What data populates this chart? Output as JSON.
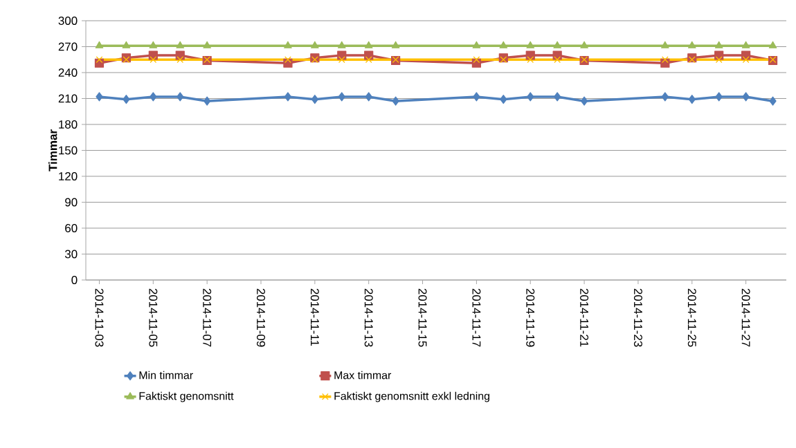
{
  "chart_data": {
    "type": "line",
    "ylabel": "Timmar",
    "x": [
      "2014-11-03",
      "2014-11-04",
      "2014-11-05",
      "2014-11-06",
      "2014-11-07",
      "2014-11-10",
      "2014-11-11",
      "2014-11-12",
      "2014-11-13",
      "2014-11-14",
      "2014-11-17",
      "2014-11-18",
      "2014-11-19",
      "2014-11-20",
      "2014-11-21",
      "2014-11-24",
      "2014-11-25",
      "2014-11-26",
      "2014-11-27",
      "2014-11-28"
    ],
    "series": [
      {
        "name": "Min timmar",
        "color": "#4f81bd",
        "marker": "diamond",
        "values": [
          212,
          209,
          212,
          212,
          207,
          212,
          209,
          212,
          212,
          207,
          212,
          209,
          212,
          212,
          207,
          212,
          209,
          212,
          212,
          207
        ]
      },
      {
        "name": "Max timmar",
        "color": "#c0504d",
        "marker": "square",
        "values": [
          251,
          257,
          260,
          260,
          254,
          251,
          257,
          260,
          260,
          254,
          251,
          257,
          260,
          260,
          254,
          251,
          257,
          260,
          260,
          254
        ]
      },
      {
        "name": "Faktiskt genomsnitt",
        "color": "#9bbb59",
        "marker": "triangle",
        "values": [
          271,
          271,
          271,
          271,
          271,
          271,
          271,
          271,
          271,
          271,
          271,
          271,
          271,
          271,
          271,
          271,
          271,
          271,
          271,
          271
        ]
      },
      {
        "name": "Faktiskt genomsnitt exkl ledning",
        "color": "#ffc000",
        "marker": "cross",
        "values": [
          255,
          255,
          255,
          255,
          255,
          255,
          255,
          255,
          255,
          255,
          255,
          255,
          255,
          255,
          255,
          255,
          255,
          255,
          255,
          255
        ]
      }
    ],
    "xlim": [
      "2014-11-02T12:00",
      "2014-11-28T12:00"
    ],
    "xticks": [
      "2014-11-03",
      "2014-11-05",
      "2014-11-07",
      "2014-11-09",
      "2014-11-11",
      "2014-11-13",
      "2014-11-15",
      "2014-11-17",
      "2014-11-19",
      "2014-11-21",
      "2014-11-23",
      "2014-11-25",
      "2014-11-27"
    ],
    "ylim": [
      0,
      300
    ],
    "yticks": [
      0,
      30,
      60,
      90,
      120,
      150,
      180,
      210,
      240,
      270,
      300
    ],
    "grid": "y",
    "legend": "bottom",
    "line_style": "solid"
  }
}
